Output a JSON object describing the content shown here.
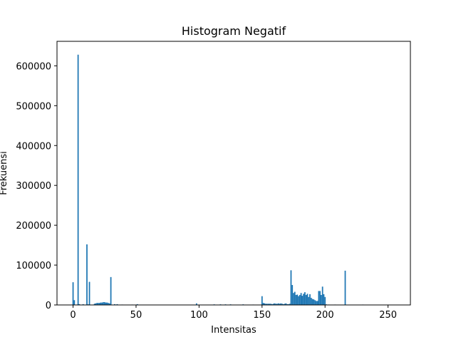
{
  "chart_data": {
    "type": "bar",
    "title": "Histogram Negatif",
    "xlabel": "Intensitas",
    "ylabel": "Frekuensi",
    "xlim": [
      -12.75,
      267.75
    ],
    "ylim": [
      0,
      661500
    ],
    "xticks": [
      0,
      50,
      100,
      150,
      200,
      250
    ],
    "xtick_labels": [
      "0",
      "50",
      "100",
      "150",
      "200",
      "250"
    ],
    "yticks": [
      0,
      100000,
      200000,
      300000,
      400000,
      500000,
      600000
    ],
    "ytick_labels": [
      "0",
      "100000",
      "200000",
      "300000",
      "400000",
      "500000",
      "600000"
    ],
    "bar_color": "#1f77b4",
    "grid": false,
    "series": [
      {
        "x": [
          0,
          1,
          3,
          4,
          5,
          8,
          11,
          12,
          13,
          17,
          18,
          19,
          20,
          21,
          22,
          23,
          24,
          25,
          26,
          27,
          28,
          29,
          30,
          33,
          35,
          39,
          47,
          51,
          98,
          112,
          117,
          121,
          125,
          135,
          143,
          150,
          151,
          152,
          153,
          154,
          155,
          156,
          157,
          158,
          159,
          160,
          161,
          162,
          163,
          164,
          165,
          166,
          167,
          168,
          169,
          170,
          171,
          172,
          173,
          174,
          175,
          176,
          177,
          178,
          179,
          180,
          181,
          182,
          183,
          184,
          185,
          186,
          187,
          188,
          189,
          190,
          191,
          192,
          193,
          194,
          195,
          196,
          197,
          198,
          199,
          200,
          201,
          203,
          208,
          216,
          230
        ],
        "y": [
          57000,
          12000,
          1000,
          628000,
          2000,
          2000,
          152000,
          1500,
          58000,
          3000,
          4000,
          5000,
          5000,
          5000,
          6000,
          6000,
          7000,
          7000,
          6000,
          6000,
          5000,
          4000,
          70000,
          2000,
          2000,
          1000,
          1000,
          2000,
          4000,
          1500,
          1500,
          1500,
          1500,
          1500,
          1000,
          22000,
          5000,
          4000,
          3000,
          3000,
          3000,
          3000,
          3000,
          2000,
          3000,
          4000,
          3000,
          3000,
          4000,
          3000,
          4000,
          3000,
          2000,
          3000,
          4000,
          2000,
          2000,
          3000,
          87000,
          50000,
          30000,
          33000,
          25000,
          26000,
          22000,
          25000,
          30000,
          23000,
          28000,
          32000,
          25000,
          28000,
          20000,
          27000,
          18000,
          15000,
          14000,
          12000,
          10000,
          10000,
          35000,
          35000,
          25000,
          46000,
          27000,
          20000,
          1500,
          1000,
          1000,
          86000,
          1000
        ]
      }
    ]
  }
}
